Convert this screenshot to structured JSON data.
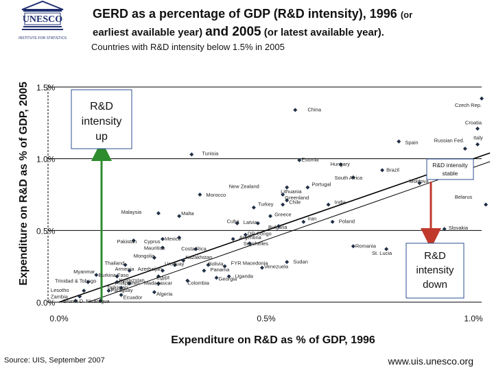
{
  "header": {
    "logo_text": "UNESCO",
    "logo_sub": "INSTITUTE FOR STATISTICS",
    "title_line1": "GERD as a percentage of GDP (R&D intensity), 1996",
    "title_line1_small": "(or",
    "title_line2_pre": "earliest available year)",
    "title_line2_and": "and 2005",
    "title_line2_post": "(or latest available year).",
    "subtitle": "Countries with R&D intensity below 1.5% in 2005"
  },
  "footer": {
    "source": "Source: UIS, September 2007",
    "website": "www.uis.unesco.org"
  },
  "colors": {
    "green_arrow": "#2e8b2e",
    "red_arrow": "#c0392b",
    "point": "#1f2f46",
    "gridline": "#000000"
  },
  "chart_data": {
    "type": "scatter",
    "title": "GERD as a percentage of GDP (R&D intensity)",
    "xlabel": "Expenditure on R&D as % of GDP, 1996",
    "ylabel": "Expenditure on R&D as % of GDP, 2005",
    "xlim": [
      0,
      1.0
    ],
    "ylim": [
      0,
      1.5
    ],
    "x_ticks": [
      0,
      0.5,
      1.0
    ],
    "x_tick_labels": [
      "0.0%",
      "0.5%",
      "1.0%"
    ],
    "y_ticks": [
      0,
      0.5,
      1.0,
      1.5
    ],
    "y_tick_labels": [
      "0.0%",
      "0.5%",
      "1.0%",
      "1.5%"
    ],
    "reference_line": "y = x",
    "points": [
      {
        "name": "Czech Rep.",
        "x": 1.02,
        "y": 1.42
      },
      {
        "name": "China",
        "x": 0.57,
        "y": 1.34
      },
      {
        "name": "Croatia",
        "x": 1.01,
        "y": 1.21
      },
      {
        "name": "Italy",
        "x": 1.01,
        "y": 1.1
      },
      {
        "name": "Russian Fed.",
        "x": 0.98,
        "y": 1.07
      },
      {
        "name": "Spain",
        "x": 0.82,
        "y": 1.12
      },
      {
        "name": "Tunisia",
        "x": 0.32,
        "y": 1.03
      },
      {
        "name": "Estonia",
        "x": 0.58,
        "y": 0.99
      },
      {
        "name": "Hungary",
        "x": 0.68,
        "y": 0.96
      },
      {
        "name": "Brazil",
        "x": 0.78,
        "y": 0.92
      },
      {
        "name": "R&D intensity stable",
        "x": 0.95,
        "y": 0.94
      },
      {
        "name": "South Africa",
        "x": 0.71,
        "y": 0.87
      },
      {
        "name": "Moldova",
        "x": 0.87,
        "y": 0.83
      },
      {
        "name": "Portugal",
        "x": 0.6,
        "y": 0.8
      },
      {
        "name": "New Zealand",
        "x": 0.55,
        "y": 0.8
      },
      {
        "name": "Lithuania",
        "x": 0.54,
        "y": 0.75
      },
      {
        "name": "Morocco",
        "x": 0.34,
        "y": 0.75
      },
      {
        "name": "Greenland",
        "x": 0.55,
        "y": 0.71
      },
      {
        "name": "Chile",
        "x": 0.54,
        "y": 0.68
      },
      {
        "name": "India",
        "x": 0.65,
        "y": 0.68
      },
      {
        "name": "Turkey",
        "x": 0.47,
        "y": 0.66
      },
      {
        "name": "Belarus",
        "x": 1.03,
        "y": 0.68
      },
      {
        "name": "Malaysia",
        "x": 0.24,
        "y": 0.62
      },
      {
        "name": "Malta",
        "x": 0.29,
        "y": 0.6
      },
      {
        "name": "Greece",
        "x": 0.51,
        "y": 0.6
      },
      {
        "name": "Iran",
        "x": 0.59,
        "y": 0.56
      },
      {
        "name": "Poland",
        "x": 0.66,
        "y": 0.56
      },
      {
        "name": "Cuba",
        "x": 0.43,
        "y": 0.55
      },
      {
        "name": "Latvia",
        "x": 0.48,
        "y": 0.55
      },
      {
        "name": "Slovakia",
        "x": 0.93,
        "y": 0.51
      },
      {
        "name": "Bulgaria",
        "x": 0.53,
        "y": 0.53
      },
      {
        "name": "DR Congo",
        "x": 0.45,
        "y": 0.47
      },
      {
        "name": "Argentina",
        "x": 0.42,
        "y": 0.44
      },
      {
        "name": "Seychelles",
        "x": 0.46,
        "y": 0.41
      },
      {
        "name": "Pakistan",
        "x": 0.18,
        "y": 0.43
      },
      {
        "name": "Cyprus",
        "x": 0.25,
        "y": 0.44
      },
      {
        "name": "Mexico",
        "x": 0.29,
        "y": 0.45
      },
      {
        "name": "Mauritius",
        "x": 0.25,
        "y": 0.38
      },
      {
        "name": "Costa Rica",
        "x": 0.33,
        "y": 0.37
      },
      {
        "name": "Romania",
        "x": 0.71,
        "y": 0.39
      },
      {
        "name": "St. Lucia",
        "x": 0.79,
        "y": 0.37
      },
      {
        "name": "Mongolia",
        "x": 0.23,
        "y": 0.31
      },
      {
        "name": "Kazakhstan",
        "x": 0.3,
        "y": 0.29
      },
      {
        "name": "Thailand",
        "x": 0.16,
        "y": 0.26
      },
      {
        "name": "Uruguay",
        "x": 0.28,
        "y": 0.26
      },
      {
        "name": "Bolivia",
        "x": 0.36,
        "y": 0.26
      },
      {
        "name": "FYR Macedonia",
        "x": 0.4,
        "y": 0.25
      },
      {
        "name": "Sudan",
        "x": 0.55,
        "y": 0.28
      },
      {
        "name": "Venezuela",
        "x": 0.49,
        "y": 0.24
      },
      {
        "name": "Armenia",
        "x": 0.17,
        "y": 0.22
      },
      {
        "name": "Azerbaijan",
        "x": 0.25,
        "y": 0.22
      },
      {
        "name": "Panama",
        "x": 0.35,
        "y": 0.22
      },
      {
        "name": "Myanmar",
        "x": 0.09,
        "y": 0.19
      },
      {
        "name": "Burkina Faso",
        "x": 0.14,
        "y": 0.18
      },
      {
        "name": "Egypt",
        "x": 0.24,
        "y": 0.18
      },
      {
        "name": "Georgia",
        "x": 0.38,
        "y": 0.17
      },
      {
        "name": "Uganda",
        "x": 0.41,
        "y": 0.18
      },
      {
        "name": "Trinidad & Tobago",
        "x": 0.07,
        "y": 0.14
      },
      {
        "name": "Kyrgyzstan",
        "x": 0.14,
        "y": 0.14
      },
      {
        "name": "Philippines",
        "x": 0.17,
        "y": 0.13
      },
      {
        "name": "Madagascar",
        "x": 0.24,
        "y": 0.13
      },
      {
        "name": "Colombia",
        "x": 0.31,
        "y": 0.15
      },
      {
        "name": "Tajikistan",
        "x": 0.15,
        "y": 0.1
      },
      {
        "name": "Lesotho",
        "x": 0.06,
        "y": 0.08
      },
      {
        "name": "Paraguay",
        "x": 0.12,
        "y": 0.08
      },
      {
        "name": "Zambia",
        "x": 0.05,
        "y": 0.04
      },
      {
        "name": "Algeria",
        "x": 0.23,
        "y": 0.07
      },
      {
        "name": "Ecuador",
        "x": 0.15,
        "y": 0.05
      },
      {
        "name": "Brunei D.",
        "x": 0.04,
        "y": 0.01
      },
      {
        "name": "Nicaragua",
        "x": 0.1,
        "y": 0.01
      }
    ],
    "labels": [
      {
        "text": "Czech Rep.",
        "x": 0.955,
        "y": 1.375
      },
      {
        "text": "China",
        "x": 0.6,
        "y": 1.345
      },
      {
        "text": "Croatia",
        "x": 0.98,
        "y": 1.255
      },
      {
        "text": "Italy",
        "x": 1.0,
        "y": 1.15
      },
      {
        "text": "Russian Fed.",
        "x": 0.905,
        "y": 1.13
      },
      {
        "text": "Spain",
        "x": 0.835,
        "y": 1.115
      },
      {
        "text": "Tunisia",
        "x": 0.345,
        "y": 1.04
      },
      {
        "text": "Estonia",
        "x": 0.585,
        "y": 0.995
      },
      {
        "text": "Hungary",
        "x": 0.655,
        "y": 0.965
      },
      {
        "text": "Brazil",
        "x": 0.79,
        "y": 0.925
      },
      {
        "text": "South Africa",
        "x": 0.665,
        "y": 0.87
      },
      {
        "text": "Moldova",
        "x": 0.845,
        "y": 0.845
      },
      {
        "text": "Portugal",
        "x": 0.61,
        "y": 0.825
      },
      {
        "text": "New Zealand",
        "x": 0.41,
        "y": 0.81
      },
      {
        "text": "Lithuania",
        "x": 0.535,
        "y": 0.775
      },
      {
        "text": "Morocco",
        "x": 0.355,
        "y": 0.75
      },
      {
        "text": "Greenland",
        "x": 0.545,
        "y": 0.73
      },
      {
        "text": "Chile",
        "x": 0.555,
        "y": 0.7
      },
      {
        "text": "India",
        "x": 0.665,
        "y": 0.7
      },
      {
        "text": "Turkey",
        "x": 0.48,
        "y": 0.685
      },
      {
        "text": "Belarus",
        "x": 0.955,
        "y": 0.735
      },
      {
        "text": "Malaysia",
        "x": 0.15,
        "y": 0.63
      },
      {
        "text": "Malta",
        "x": 0.295,
        "y": 0.62
      },
      {
        "text": "Greece",
        "x": 0.52,
        "y": 0.615
      },
      {
        "text": "Iran",
        "x": 0.6,
        "y": 0.585
      },
      {
        "text": "Poland",
        "x": 0.675,
        "y": 0.565
      },
      {
        "text": "Cuba",
        "x": 0.405,
        "y": 0.565
      },
      {
        "text": "Latvia",
        "x": 0.445,
        "y": 0.56
      },
      {
        "text": "Slovakia",
        "x": 0.94,
        "y": 0.52
      },
      {
        "text": "Bulgaria",
        "x": 0.505,
        "y": 0.525
      },
      {
        "text": "DR Congo",
        "x": 0.455,
        "y": 0.48
      },
      {
        "text": "Argentina",
        "x": 0.435,
        "y": 0.455
      },
      {
        "text": "Seychelles",
        "x": 0.445,
        "y": 0.41
      },
      {
        "text": "Pakistan",
        "x": 0.14,
        "y": 0.425
      },
      {
        "text": "Cyprus",
        "x": 0.205,
        "y": 0.425
      },
      {
        "text": "Mexico",
        "x": 0.255,
        "y": 0.445
      },
      {
        "text": "Mauritius",
        "x": 0.205,
        "y": 0.38
      },
      {
        "text": "Costa Rica",
        "x": 0.295,
        "y": 0.375
      },
      {
        "text": "Romania",
        "x": 0.715,
        "y": 0.395
      },
      {
        "text": "St. Lucia",
        "x": 0.755,
        "y": 0.345
      },
      {
        "text": "Mongolia",
        "x": 0.18,
        "y": 0.325
      },
      {
        "text": "Kazakhstan",
        "x": 0.305,
        "y": 0.315
      },
      {
        "text": "Thailand",
        "x": 0.11,
        "y": 0.275
      },
      {
        "text": "Uruguay",
        "x": 0.255,
        "y": 0.27
      },
      {
        "text": "Bolivia",
        "x": 0.36,
        "y": 0.27
      },
      {
        "text": "FYR Macedonia",
        "x": 0.415,
        "y": 0.275
      },
      {
        "text": "Sudan",
        "x": 0.565,
        "y": 0.285
      },
      {
        "text": "Venezuela",
        "x": 0.495,
        "y": 0.25
      },
      {
        "text": "Armenia",
        "x": 0.135,
        "y": 0.235
      },
      {
        "text": "Azerbaijan",
        "x": 0.19,
        "y": 0.235
      },
      {
        "text": "Panama",
        "x": 0.365,
        "y": 0.23
      },
      {
        "text": "Myanmar",
        "x": 0.035,
        "y": 0.215
      },
      {
        "text": "Burkina Faso",
        "x": 0.095,
        "y": 0.19
      },
      {
        "text": "Egypt",
        "x": 0.235,
        "y": 0.175
      },
      {
        "text": "Georgia",
        "x": 0.385,
        "y": 0.165
      },
      {
        "text": "Uganda",
        "x": 0.425,
        "y": 0.185
      },
      {
        "text": "Trinidad & Tobago",
        "x": -0.01,
        "y": 0.15
      },
      {
        "text": "Kyrgyzstan",
        "x": 0.145,
        "y": 0.155
      },
      {
        "text": "Philippines",
        "x": 0.135,
        "y": 0.135
      },
      {
        "text": "Madagascar",
        "x": 0.205,
        "y": 0.135
      },
      {
        "text": "Colombia",
        "x": 0.31,
        "y": 0.135
      },
      {
        "text": "Tajikistan",
        "x": 0.115,
        "y": 0.105
      },
      {
        "text": "Lesotho",
        "x": -0.02,
        "y": 0.085
      },
      {
        "text": "Paraguay",
        "x": 0.125,
        "y": 0.085
      },
      {
        "text": "Zambia",
        "x": -0.02,
        "y": 0.04
      },
      {
        "text": "Algeria",
        "x": 0.235,
        "y": 0.06
      },
      {
        "text": "Ecuador",
        "x": 0.155,
        "y": 0.035
      },
      {
        "text": "Brunei D. Nicaragua",
        "x": 0.01,
        "y": 0.01
      }
    ],
    "annotations": {
      "up_label": "R&D intensity up",
      "stable_label": "R&D intensity stable",
      "down_label": "R&D intensity down"
    }
  }
}
